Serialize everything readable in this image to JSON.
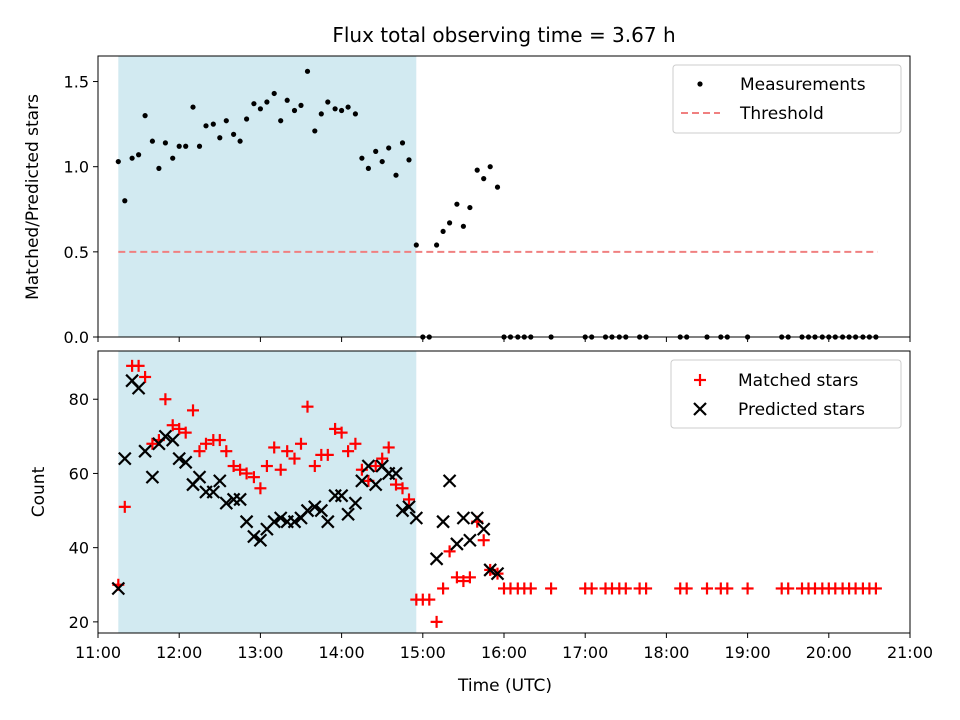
{
  "chart_data": [
    {
      "type": "scatter",
      "title": "Flux total observing time = 3.67 h",
      "xlabel": "",
      "ylabel": "Matched/Predicted stars",
      "xlim": [
        11.0,
        21.0
      ],
      "ylim": [
        0.0,
        1.65
      ],
      "yticks": [
        0.0,
        0.5,
        1.0,
        1.5
      ],
      "ytick_labels": [
        "0.0",
        "0.5",
        "1.0",
        "1.5"
      ],
      "shaded_span": [
        11.25,
        14.92
      ],
      "shade_color": "#add8e6",
      "legend": [
        "Measurements",
        "Threshold"
      ],
      "legend_position": "top-right",
      "threshold": {
        "name": "Threshold",
        "y": 0.5,
        "x": [
          11.25,
          20.6
        ],
        "color": "#f08080"
      },
      "series": [
        {
          "name": "Measurements",
          "color": "#000000",
          "x": [
            11.25,
            11.33,
            11.42,
            11.5,
            11.58,
            11.67,
            11.75,
            11.83,
            11.92,
            12.0,
            12.08,
            12.17,
            12.25,
            12.33,
            12.42,
            12.5,
            12.58,
            12.67,
            12.75,
            12.83,
            12.92,
            13.0,
            13.08,
            13.17,
            13.25,
            13.33,
            13.42,
            13.5,
            13.58,
            13.67,
            13.75,
            13.83,
            13.92,
            14.0,
            14.08,
            14.17,
            14.25,
            14.33,
            14.42,
            14.5,
            14.58,
            14.67,
            14.75,
            14.83,
            14.92,
            15.0,
            15.08,
            15.17,
            15.25,
            15.33,
            15.42,
            15.5,
            15.58,
            15.67,
            15.75,
            15.83,
            15.92,
            16.0,
            16.08,
            16.17,
            16.25,
            16.33,
            16.58,
            17.0,
            17.08,
            17.25,
            17.33,
            17.42,
            17.5,
            17.67,
            17.75,
            18.17,
            18.25,
            18.5,
            18.67,
            18.75,
            19.0,
            19.42,
            19.5,
            19.67,
            19.75,
            19.83,
            19.92,
            20.0,
            20.08,
            20.17,
            20.25,
            20.33,
            20.42,
            20.5,
            20.58
          ],
          "y": [
            1.03,
            0.8,
            1.05,
            1.07,
            1.3,
            1.15,
            0.99,
            1.14,
            1.05,
            1.12,
            1.12,
            1.35,
            1.12,
            1.24,
            1.25,
            1.17,
            1.27,
            1.19,
            1.15,
            1.28,
            1.37,
            1.34,
            1.38,
            1.43,
            1.27,
            1.39,
            1.33,
            1.36,
            1.56,
            1.21,
            1.31,
            1.38,
            1.34,
            1.33,
            1.35,
            1.31,
            1.05,
            0.99,
            1.09,
            1.03,
            1.11,
            0.95,
            1.14,
            1.04,
            0.54,
            0.0,
            0.0,
            0.54,
            0.62,
            0.67,
            0.78,
            0.65,
            0.76,
            0.98,
            0.93,
            1.0,
            0.88,
            0.0,
            0.0,
            0.0,
            0.0,
            0.0,
            0.0,
            0.0,
            0.0,
            0.0,
            0.0,
            0.0,
            0.0,
            0.0,
            0.0,
            0.0,
            0.0,
            0.0,
            0.0,
            0.0,
            0.0,
            0.0,
            0.0,
            0.0,
            0.0,
            0.0,
            0.0,
            0.0,
            0.0,
            0.0,
            0.0,
            0.0,
            0.0,
            0.0,
            0.0
          ]
        }
      ]
    },
    {
      "type": "scatter",
      "title": "",
      "xlabel": "Time (UTC)",
      "ylabel": "Count",
      "xlim": [
        11.0,
        21.0
      ],
      "ylim": [
        17,
        93
      ],
      "xticks": [
        11,
        12,
        13,
        14,
        15,
        16,
        17,
        18,
        19,
        20,
        21
      ],
      "xtick_labels": [
        "11:00",
        "12:00",
        "13:00",
        "14:00",
        "15:00",
        "16:00",
        "17:00",
        "18:00",
        "19:00",
        "20:00",
        "21:00"
      ],
      "yticks": [
        20,
        40,
        60,
        80
      ],
      "ytick_labels": [
        "20",
        "40",
        "60",
        "80"
      ],
      "shaded_span": [
        11.25,
        14.92
      ],
      "shade_color": "#add8e6",
      "legend": [
        "Matched stars",
        "Predicted stars"
      ],
      "legend_position": "top-right",
      "series": [
        {
          "name": "Matched stars",
          "marker": "+",
          "color": "#ff0000",
          "x": [
            11.25,
            11.33,
            11.42,
            11.5,
            11.58,
            11.67,
            11.75,
            11.83,
            11.92,
            12.0,
            12.08,
            12.17,
            12.25,
            12.33,
            12.42,
            12.5,
            12.58,
            12.67,
            12.75,
            12.83,
            12.92,
            13.0,
            13.08,
            13.17,
            13.25,
            13.33,
            13.42,
            13.5,
            13.58,
            13.67,
            13.75,
            13.83,
            13.92,
            14.0,
            14.08,
            14.17,
            14.25,
            14.33,
            14.42,
            14.5,
            14.58,
            14.67,
            14.75,
            14.83,
            14.92,
            15.0,
            15.08,
            15.17,
            15.25,
            15.33,
            15.42,
            15.5,
            15.58,
            15.67,
            15.75,
            15.83,
            15.92,
            16.0,
            16.08,
            16.17,
            16.25,
            16.33,
            16.58,
            17.0,
            17.08,
            17.25,
            17.33,
            17.42,
            17.5,
            17.67,
            17.75,
            18.17,
            18.25,
            18.5,
            18.67,
            18.75,
            19.0,
            19.42,
            19.5,
            19.67,
            19.75,
            19.83,
            19.92,
            20.0,
            20.08,
            20.17,
            20.25,
            20.33,
            20.42,
            20.5,
            20.58
          ],
          "y": [
            30,
            51,
            89,
            89,
            86,
            68,
            69,
            80,
            73,
            72,
            71,
            77,
            66,
            68,
            69,
            69,
            66,
            62,
            61,
            60,
            59,
            56,
            62,
            67,
            61,
            66,
            64,
            68,
            78,
            62,
            65,
            65,
            72,
            71,
            66,
            68,
            61,
            58,
            62,
            64,
            67,
            57,
            56,
            53,
            26,
            26,
            26,
            20,
            29,
            39,
            32,
            31,
            32,
            47,
            42,
            34,
            33,
            29,
            29,
            29,
            29,
            29,
            29,
            29,
            29,
            29,
            29,
            29,
            29,
            29,
            29,
            29,
            29,
            29,
            29,
            29,
            29,
            29,
            29,
            29,
            29,
            29,
            29,
            29,
            29,
            29,
            29,
            29,
            29,
            29,
            29
          ]
        },
        {
          "name": "Predicted stars",
          "marker": "x",
          "color": "#000000",
          "x": [
            11.25,
            11.33,
            11.42,
            11.5,
            11.58,
            11.67,
            11.75,
            11.83,
            11.92,
            12.0,
            12.08,
            12.17,
            12.25,
            12.33,
            12.42,
            12.5,
            12.58,
            12.67,
            12.75,
            12.83,
            12.92,
            13.0,
            13.08,
            13.17,
            13.25,
            13.33,
            13.42,
            13.5,
            13.58,
            13.67,
            13.75,
            13.83,
            13.92,
            14.0,
            14.08,
            14.17,
            14.25,
            14.33,
            14.42,
            14.5,
            14.58,
            14.67,
            14.75,
            14.83,
            14.92,
            15.17,
            15.25,
            15.33,
            15.42,
            15.5,
            15.58,
            15.67,
            15.75,
            15.83,
            15.92
          ],
          "y": [
            29,
            64,
            85,
            83,
            66,
            59,
            68,
            70,
            69,
            64,
            63,
            57,
            59,
            55,
            55,
            58,
            52,
            53,
            53,
            47,
            43,
            42,
            45,
            47,
            48,
            47,
            47,
            48,
            50,
            51,
            50,
            47,
            54,
            54,
            49,
            52,
            58,
            62,
            57,
            62,
            60,
            60,
            50,
            51,
            48,
            37,
            47,
            58,
            41,
            48,
            42,
            48,
            45,
            34,
            33
          ]
        }
      ]
    }
  ]
}
